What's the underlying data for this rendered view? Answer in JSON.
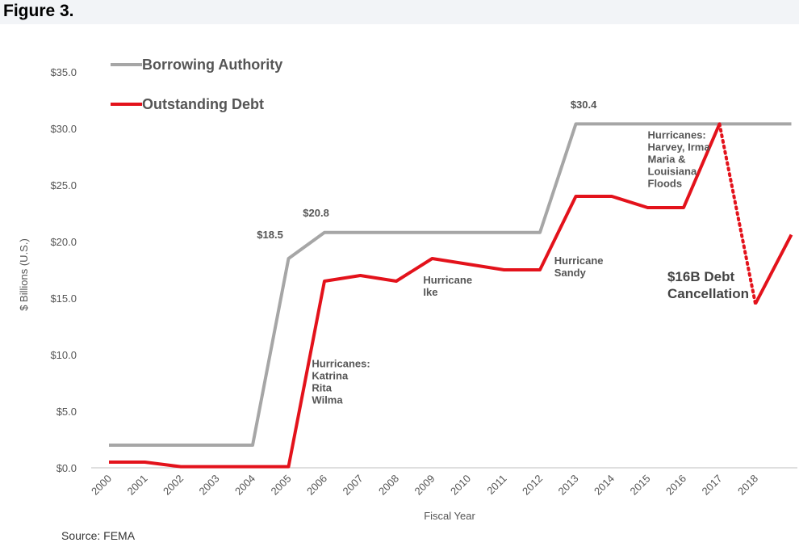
{
  "figure_label": "Figure 3.",
  "source": "Source:  FEMA",
  "chart_data": {
    "type": "line",
    "title": "",
    "xlabel": "Fiscal Year",
    "ylabel": "$ Billions (U.S.)",
    "ylim": [
      0,
      35
    ],
    "yticks": [
      "$0.0",
      "$5.0",
      "$10.0",
      "$15.0",
      "$20.0",
      "$25.0",
      "$30.0",
      "$35.0"
    ],
    "xticks": [
      "2000",
      "2001",
      "2002",
      "2003",
      "2004",
      "2005",
      "2006",
      "2007",
      "2008",
      "2009",
      "2010",
      "2011",
      "2012",
      "2013",
      "2014",
      "2015",
      "2016",
      "2017",
      "2018"
    ],
    "grid": false,
    "legend_position": "top-left",
    "series": [
      {
        "name": "Borrowing Authority",
        "color": "#a6a6a6",
        "points": [
          [
            2000,
            2.0
          ],
          [
            2004,
            2.0
          ],
          [
            2005,
            18.5
          ],
          [
            2006,
            20.8
          ],
          [
            2012,
            20.8
          ],
          [
            2013,
            30.4
          ],
          [
            2019,
            30.4
          ]
        ]
      },
      {
        "name": "Outstanding Debt",
        "color": "#e3121b",
        "points": [
          [
            2000,
            0.5
          ],
          [
            2001,
            0.5
          ],
          [
            2002,
            0.1
          ],
          [
            2005,
            0.1
          ],
          [
            2006,
            16.5
          ],
          [
            2007,
            17.0
          ],
          [
            2008,
            16.5
          ],
          [
            2009,
            18.5
          ],
          [
            2010,
            18.0
          ],
          [
            2011,
            17.5
          ],
          [
            2012,
            17.5
          ],
          [
            2013,
            24.0
          ],
          [
            2014,
            24.0
          ],
          [
            2015,
            23.0
          ],
          [
            2016,
            23.0
          ],
          [
            2017,
            30.4
          ]
        ],
        "dotted_points": [
          [
            2017,
            30.4
          ],
          [
            2018,
            14.5
          ]
        ],
        "after_points": [
          [
            2018,
            14.5
          ],
          [
            2019,
            20.6
          ]
        ]
      }
    ],
    "annotations": [
      {
        "text": "$18.5",
        "x": 2004.85,
        "y": 20.3,
        "anchor": "end",
        "style": "small"
      },
      {
        "text": "$20.8",
        "x": 2005.4,
        "y": 22.2,
        "anchor": "start",
        "style": "small"
      },
      {
        "text": "$30.4",
        "x": 2012.85,
        "y": 31.8,
        "anchor": "start",
        "style": "small"
      },
      {
        "lines": [
          "Hurricanes:",
          "Katrina",
          "Rita",
          "Wilma"
        ],
        "x": 2005.65,
        "y": 8.9,
        "anchor": "start",
        "style": "small"
      },
      {
        "lines": [
          "Hurricane",
          "Ike"
        ],
        "x": 2008.75,
        "y": 16.3,
        "anchor": "start",
        "style": "small"
      },
      {
        "lines": [
          "Hurricane",
          "Sandy"
        ],
        "x": 2012.4,
        "y": 18.0,
        "anchor": "start",
        "style": "small"
      },
      {
        "lines": [
          "Hurricanes:",
          "Harvey, Irma",
          "Maria &",
          "Louisiana",
          "Floods"
        ],
        "x": 2015.0,
        "y": 29.1,
        "anchor": "start",
        "style": "small"
      },
      {
        "lines": [
          "$16B Debt",
          "Cancellation"
        ],
        "x": 2015.55,
        "y": 16.5,
        "anchor": "start",
        "style": "big"
      }
    ]
  }
}
